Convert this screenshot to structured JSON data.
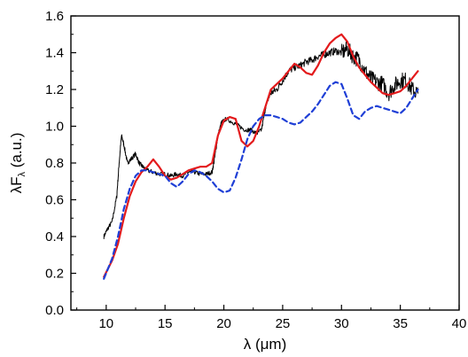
{
  "chart_data": {
    "type": "line",
    "title": "",
    "xlabel": "λ (μm)",
    "ylabel_parts": {
      "pre": "λF",
      "sub": "λ",
      "post": " (a.u.)"
    },
    "xlim": [
      7,
      40
    ],
    "ylim": [
      0.0,
      1.6
    ],
    "xticks": [
      10,
      15,
      20,
      25,
      30,
      35,
      40
    ],
    "yticks": [
      0.0,
      0.2,
      0.4,
      0.6,
      0.8,
      1.0,
      1.2,
      1.4,
      1.6
    ],
    "ytick_labels": [
      "0.0",
      "0.2",
      "0.4",
      "0.6",
      "0.8",
      "1.0",
      "1.2",
      "1.4",
      "1.6"
    ],
    "grid": false,
    "legend": "none",
    "series": [
      {
        "style": "solid",
        "color": "#000000",
        "noisy": true,
        "x": [
          9.8,
          10.1,
          10.5,
          10.9,
          11.1,
          11.3,
          11.5,
          11.8,
          12.1,
          12.5,
          12.8,
          13.1,
          13.5,
          14.0,
          14.5,
          15.0,
          15.5,
          16.0,
          16.5,
          17.0,
          17.5,
          18.0,
          18.5,
          19.0,
          19.2,
          19.5,
          19.8,
          20.2,
          20.8,
          21.3,
          21.8,
          22.3,
          22.8,
          23.2,
          23.6,
          24.0,
          24.5,
          25.0,
          25.5,
          26.0,
          26.5,
          27.0,
          27.5,
          28.0,
          28.5,
          29.0,
          29.5,
          30.0,
          30.5,
          31.0,
          31.5,
          32.0,
          32.5,
          33.0,
          33.5,
          34.0,
          34.5,
          35.0,
          35.5,
          36.0,
          36.5
        ],
        "y": [
          0.4,
          0.44,
          0.48,
          0.62,
          0.8,
          0.95,
          0.9,
          0.8,
          0.82,
          0.85,
          0.8,
          0.78,
          0.76,
          0.75,
          0.74,
          0.74,
          0.73,
          0.74,
          0.73,
          0.75,
          0.75,
          0.74,
          0.74,
          0.75,
          0.82,
          0.95,
          1.02,
          1.04,
          1.02,
          1.0,
          0.98,
          0.98,
          0.96,
          0.98,
          1.12,
          1.18,
          1.2,
          1.25,
          1.3,
          1.32,
          1.33,
          1.35,
          1.36,
          1.38,
          1.39,
          1.4,
          1.41,
          1.4,
          1.42,
          1.38,
          1.36,
          1.3,
          1.26,
          1.24,
          1.23,
          1.18,
          1.22,
          1.25,
          1.25,
          1.2,
          1.18
        ]
      },
      {
        "style": "solid",
        "color": "#e31a1c",
        "noisy": false,
        "x": [
          9.8,
          10.5,
          11.0,
          11.5,
          12.0,
          12.5,
          13.0,
          13.5,
          14.0,
          14.5,
          15.0,
          15.5,
          16.0,
          16.5,
          17.0,
          17.5,
          18.0,
          18.5,
          19.0,
          19.5,
          20.0,
          20.5,
          21.0,
          21.5,
          22.0,
          22.5,
          23.0,
          23.5,
          24.0,
          24.5,
          25.0,
          25.5,
          26.0,
          26.5,
          27.0,
          27.5,
          28.0,
          28.5,
          29.0,
          29.5,
          30.0,
          30.5,
          31.0,
          31.5,
          32.0,
          32.5,
          33.0,
          33.5,
          34.0,
          34.5,
          35.0,
          35.5,
          36.0,
          36.5
        ],
        "y": [
          0.18,
          0.27,
          0.36,
          0.5,
          0.62,
          0.7,
          0.75,
          0.78,
          0.82,
          0.78,
          0.73,
          0.71,
          0.72,
          0.74,
          0.76,
          0.77,
          0.78,
          0.78,
          0.8,
          0.95,
          1.03,
          1.05,
          1.04,
          0.92,
          0.89,
          0.92,
          1.0,
          1.1,
          1.2,
          1.23,
          1.26,
          1.3,
          1.34,
          1.32,
          1.29,
          1.28,
          1.33,
          1.4,
          1.45,
          1.48,
          1.5,
          1.46,
          1.38,
          1.32,
          1.28,
          1.24,
          1.21,
          1.18,
          1.17,
          1.18,
          1.19,
          1.22,
          1.26,
          1.3
        ]
      },
      {
        "style": "dashed",
        "color": "#1f3fd6",
        "noisy": false,
        "x": [
          9.8,
          10.5,
          11.0,
          11.5,
          12.0,
          12.5,
          13.0,
          13.5,
          14.0,
          14.5,
          15.0,
          15.5,
          16.0,
          16.5,
          17.0,
          17.5,
          18.0,
          18.5,
          19.0,
          19.5,
          20.0,
          20.5,
          21.0,
          21.5,
          22.0,
          22.5,
          23.0,
          23.5,
          24.0,
          24.5,
          25.0,
          25.5,
          26.0,
          26.5,
          27.0,
          27.5,
          28.0,
          28.5,
          29.0,
          29.5,
          30.0,
          30.5,
          31.0,
          31.5,
          32.0,
          32.5,
          33.0,
          33.5,
          34.0,
          34.5,
          35.0,
          35.5,
          36.0,
          36.5
        ],
        "y": [
          0.17,
          0.28,
          0.4,
          0.55,
          0.66,
          0.73,
          0.76,
          0.76,
          0.75,
          0.74,
          0.73,
          0.69,
          0.67,
          0.7,
          0.74,
          0.76,
          0.75,
          0.73,
          0.7,
          0.66,
          0.64,
          0.65,
          0.72,
          0.82,
          0.93,
          1.0,
          1.04,
          1.06,
          1.06,
          1.05,
          1.04,
          1.02,
          1.01,
          1.02,
          1.05,
          1.08,
          1.12,
          1.17,
          1.22,
          1.24,
          1.23,
          1.15,
          1.06,
          1.04,
          1.08,
          1.1,
          1.11,
          1.1,
          1.09,
          1.08,
          1.07,
          1.1,
          1.15,
          1.2
        ]
      }
    ]
  }
}
